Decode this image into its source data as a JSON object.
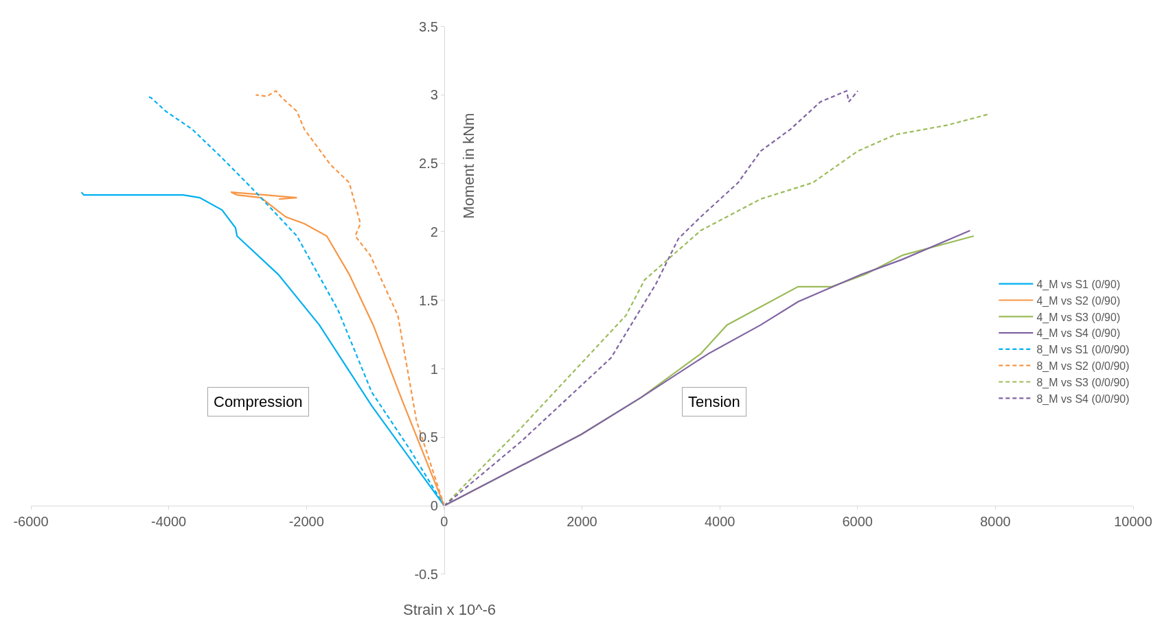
{
  "chart_data": {
    "type": "line",
    "xlabel": "Strain x 10^-6",
    "ylabel": "Moment in kNm",
    "xlim": [
      -6000,
      10000
    ],
    "xticks": [
      -6000,
      -4000,
      -2000,
      0,
      2000,
      4000,
      6000,
      8000,
      10000
    ],
    "ylim": [
      -0.5,
      3.5
    ],
    "yticks": [
      -0.5,
      0,
      0.5,
      1,
      1.5,
      2,
      2.5,
      3,
      3.5
    ],
    "legend": "right",
    "marker": "none",
    "annotations": [
      "Compression",
      "Tension"
    ],
    "series": [
      {
        "name": "4_M vs S1 (0/90)",
        "color": "#00b0f0",
        "line_style": "solid",
        "x": [
          0,
          -1053,
          -1813,
          -2410,
          -3008,
          -3030,
          -3225,
          -3550,
          -3790,
          -4528,
          -4962,
          -5233,
          -5266
        ],
        "values": [
          0,
          0.73,
          1.32,
          1.69,
          1.97,
          2.03,
          2.16,
          2.25,
          2.27,
          2.27,
          2.27,
          2.27,
          2.29
        ]
      },
      {
        "name": "4_M vs S2 (0/90)",
        "color": "#f79646",
        "line_style": "solid",
        "x": [
          0,
          -619,
          -1031,
          -1379,
          -1705,
          -2031,
          -2302,
          -2660,
          -3008,
          -3095,
          -2600,
          -2139,
          -2400
        ],
        "values": [
          0,
          0.78,
          1.32,
          1.69,
          1.97,
          2.06,
          2.11,
          2.25,
          2.27,
          2.29,
          2.27,
          2.25,
          2.24
        ]
      },
      {
        "name": "4_M vs S3 (0/90)",
        "color": "#9bbb59",
        "line_style": "solid",
        "x": [
          0,
          1987,
          2856,
          3724,
          4104,
          5136,
          5624,
          6113,
          6656,
          7687
        ],
        "values": [
          0,
          0.52,
          0.79,
          1.11,
          1.32,
          1.6,
          1.6,
          1.69,
          1.83,
          1.97
        ]
      },
      {
        "name": "4_M vs S4 (0/90)",
        "color": "#8064a2",
        "line_style": "solid",
        "x": [
          0,
          1987,
          2856,
          3833,
          4593,
          5136,
          6059,
          6656,
          7633
        ],
        "values": [
          0,
          0.52,
          0.79,
          1.11,
          1.32,
          1.49,
          1.69,
          1.8,
          2.01
        ]
      },
      {
        "name": "8_M vs S1 (0/0/90)",
        "color": "#00b0f0",
        "line_style": "dashed",
        "x": [
          0,
          -510,
          -1053,
          -1542,
          -2139,
          -2736,
          -3225,
          -3659,
          -4039,
          -4256,
          -4310
        ],
        "values": [
          0,
          0.42,
          0.83,
          1.43,
          1.97,
          2.29,
          2.54,
          2.75,
          2.88,
          2.98,
          2.99
        ]
      },
      {
        "name": "8_M vs S2 (0/0/90)",
        "color": "#f79646",
        "line_style": "dashed",
        "x": [
          0,
          -402,
          -673,
          -1075,
          -1292,
          -1216,
          -1379,
          -1650,
          -2031,
          -2139,
          -2356,
          -2443,
          -2573,
          -2736
        ],
        "values": [
          0,
          0.62,
          1.39,
          1.83,
          1.97,
          2.06,
          2.36,
          2.49,
          2.75,
          2.88,
          2.98,
          3.03,
          2.99,
          3.0
        ]
      },
      {
        "name": "8_M vs S3 (0/0/90)",
        "color": "#9bbb59",
        "line_style": "dashed",
        "x": [
          0,
          1118,
          2638,
          2910,
          3724,
          4593,
          5353,
          6004,
          6547,
          7307,
          7904
        ],
        "values": [
          0,
          0.57,
          1.39,
          1.65,
          2.01,
          2.24,
          2.36,
          2.59,
          2.71,
          2.78,
          2.86
        ]
      },
      {
        "name": "8_M vs S4 (0/0/90)",
        "color": "#8064a2",
        "line_style": "dashed",
        "x": [
          0,
          1118,
          2421,
          3073,
          3399,
          3724,
          4267,
          4593,
          5027,
          5461,
          5841,
          5873,
          6004
        ],
        "values": [
          0,
          0.47,
          1.08,
          1.62,
          1.95,
          2.11,
          2.36,
          2.59,
          2.75,
          2.95,
          3.03,
          2.95,
          3.03
        ]
      }
    ]
  }
}
